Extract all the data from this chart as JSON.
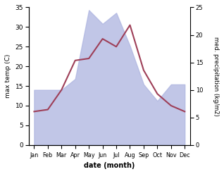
{
  "months": [
    "Jan",
    "Feb",
    "Mar",
    "Apr",
    "May",
    "Jun",
    "Jul",
    "Aug",
    "Sep",
    "Oct",
    "Nov",
    "Dec"
  ],
  "month_indices": [
    0,
    1,
    2,
    3,
    4,
    5,
    6,
    7,
    8,
    9,
    10,
    11
  ],
  "temperature": [
    8.5,
    9.0,
    14.0,
    21.5,
    22.0,
    27.0,
    25.0,
    30.5,
    19.0,
    13.0,
    10.0,
    8.5
  ],
  "precipitation": [
    10.0,
    10.0,
    10.0,
    12.0,
    24.5,
    22.0,
    24.0,
    18.0,
    11.0,
    8.0,
    11.0,
    11.0
  ],
  "temp_color": "#9e3f58",
  "precip_fill_color": "#adb4e0",
  "precip_fill_alpha": 0.75,
  "temp_ylim": [
    0,
    35
  ],
  "precip_ylim": [
    0,
    25
  ],
  "temp_yticks": [
    0,
    5,
    10,
    15,
    20,
    25,
    30,
    35
  ],
  "precip_yticks": [
    0,
    5,
    10,
    15,
    20,
    25
  ],
  "xlabel": "date (month)",
  "ylabel_left": "max temp (C)",
  "ylabel_right": "med. precipitation (kg/m2)",
  "bg_color": "#ffffff",
  "linewidth": 1.5,
  "figsize": [
    3.18,
    2.47
  ],
  "dpi": 100
}
